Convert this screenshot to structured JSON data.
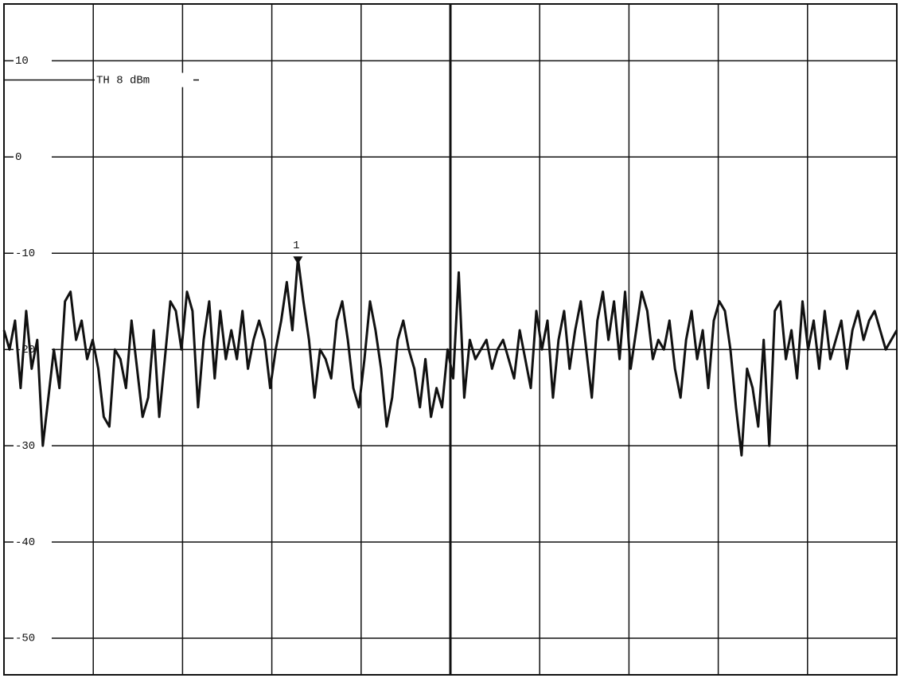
{
  "chart_data": {
    "type": "line",
    "threshold": {
      "value": 8,
      "label": "TH 8 dBm"
    },
    "marker": {
      "label": "1"
    },
    "ylim": [
      -53.8,
      15.9
    ],
    "yticks": [
      10,
      0,
      -10,
      -20,
      -30,
      -40,
      -50
    ],
    "grid": true,
    "color": "#111111",
    "values": [
      -18,
      -20,
      -17,
      -24,
      -16,
      -22,
      -19,
      -30,
      -25,
      -20,
      -24,
      -15,
      -14,
      -19,
      -17,
      -21,
      -19,
      -22,
      -27,
      -28,
      -20,
      -21,
      -24,
      -17,
      -22,
      -27,
      -25,
      -18,
      -27,
      -21,
      -15,
      -16,
      -20,
      -14,
      -16,
      -26,
      -19,
      -15,
      -23,
      -16,
      -21,
      -18,
      -21,
      -16,
      -22,
      -19,
      -17,
      -19,
      -24,
      -20,
      -17,
      -13,
      -18,
      -10.5,
      -15,
      -19,
      -25,
      -20,
      -21,
      -23,
      -17,
      -15,
      -19,
      -24,
      -26,
      -21,
      -15,
      -18,
      -22,
      -28,
      -25,
      -19,
      -17,
      -20,
      -22,
      -26,
      -21,
      -27,
      -24,
      -26,
      -20,
      -23,
      -12,
      -25,
      -19,
      -21,
      -20,
      -19,
      -22,
      -20,
      -19,
      -21,
      -23,
      -18,
      -21,
      -24,
      -16,
      -20,
      -17,
      -25,
      -19,
      -16,
      -22,
      -18,
      -15,
      -20,
      -25,
      -17,
      -14,
      -19,
      -15,
      -21,
      -14,
      -22,
      -18,
      -14,
      -16,
      -21,
      -19,
      -20,
      -17,
      -22,
      -25,
      -19,
      -16,
      -21,
      -18,
      -24,
      -17,
      -15,
      -16,
      -20,
      -26,
      -31,
      -22,
      -24,
      -28,
      -19,
      -30,
      -16,
      -15,
      -21,
      -18,
      -23,
      -15,
      -20,
      -17,
      -22,
      -16,
      -21,
      -19,
      -17,
      -22,
      -18,
      -16,
      -19,
      -17,
      -16,
      -18,
      -20,
      -19,
      -18
    ]
  }
}
